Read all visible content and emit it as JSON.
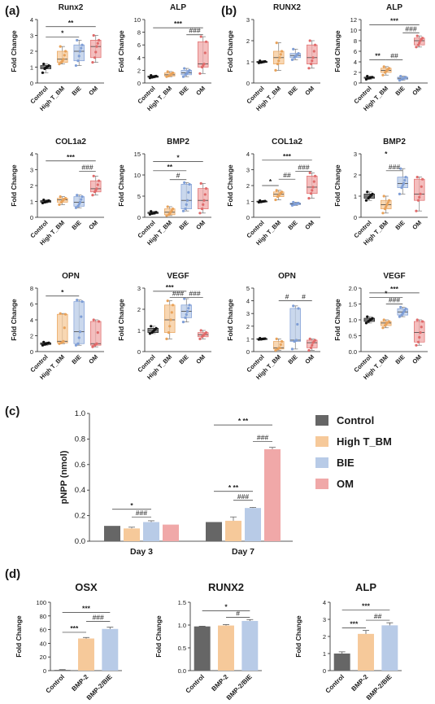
{
  "panel_labels": {
    "a": "(a)",
    "b": "(b)",
    "c": "(c)",
    "d": "(d)"
  },
  "common": {
    "ylabel": "Fold Change"
  },
  "colors": {
    "control": "#666666",
    "hightbm": "#f6c99a",
    "bie": "#b8cbe7",
    "om": "#f0a8a8",
    "dot_control": "#111111",
    "dot_hightbm": "#e8a25a",
    "dot_bie": "#7f9ed6",
    "dot_om": "#e06b6b"
  },
  "chart_data": [
    {
      "id": "a-runx2",
      "type": "box",
      "title": "Runx2",
      "ylabel": "Fold Change",
      "categories": [
        "Control",
        "High T_BM",
        "BIE",
        "OM"
      ],
      "ylim": [
        0,
        4
      ],
      "yticks": [
        "0",
        "1",
        "2",
        "3",
        "4"
      ],
      "boxes": [
        {
          "min": 0.65,
          "q1": 0.9,
          "median": 1.0,
          "q3": 1.1,
          "max": 1.2
        },
        {
          "min": 1.2,
          "q1": 1.3,
          "median": 1.5,
          "q3": 2.0,
          "max": 2.3
        },
        {
          "min": 1.1,
          "q1": 1.4,
          "median": 2.0,
          "q3": 2.4,
          "max": 2.7
        },
        {
          "min": 1.3,
          "q1": 1.6,
          "median": 2.3,
          "q3": 2.7,
          "max": 3.0
        }
      ],
      "sig": [
        {
          "from": 0,
          "to": 3,
          "text": "**",
          "level": 3.55
        },
        {
          "from": 0,
          "to": 2,
          "text": "*",
          "level": 2.9
        }
      ]
    },
    {
      "id": "a-alp",
      "type": "box",
      "title": "ALP",
      "ylabel": "Fold Change",
      "categories": [
        "Control",
        "High T_BM",
        "BIE",
        "OM"
      ],
      "ylim": [
        0,
        10
      ],
      "yticks": [
        "0",
        "2",
        "4",
        "6",
        "8",
        "10"
      ],
      "boxes": [
        {
          "min": 0.8,
          "q1": 0.9,
          "median": 1.0,
          "q3": 1.1,
          "max": 1.2
        },
        {
          "min": 1.0,
          "q1": 1.1,
          "median": 1.3,
          "q3": 1.6,
          "max": 1.8
        },
        {
          "min": 1.0,
          "q1": 1.3,
          "median": 1.6,
          "q3": 2.0,
          "max": 2.3
        },
        {
          "min": 1.5,
          "q1": 2.5,
          "median": 3.0,
          "q3": 6.5,
          "max": 7.3
        }
      ],
      "sig": [
        {
          "from": 0,
          "to": 3,
          "text": "***",
          "level": 8.7
        },
        {
          "from": 2,
          "to": 3,
          "text": "###",
          "level": 7.6
        }
      ]
    },
    {
      "id": "b-runx2",
      "type": "box",
      "title": "RUNX2",
      "ylabel": "Fold Change",
      "categories": [
        "Control",
        "High T_BM",
        "BIE",
        "OM"
      ],
      "ylim": [
        0,
        3
      ],
      "yticks": [
        "0",
        "1",
        "2",
        "3"
      ],
      "boxes": [
        {
          "min": 0.95,
          "q1": 0.97,
          "median": 1.0,
          "q3": 1.02,
          "max": 1.05
        },
        {
          "min": 0.6,
          "q1": 0.9,
          "median": 1.2,
          "q3": 1.5,
          "max": 1.9
        },
        {
          "min": 1.1,
          "q1": 1.2,
          "median": 1.3,
          "q3": 1.4,
          "max": 1.6
        },
        {
          "min": 0.7,
          "q1": 0.9,
          "median": 1.2,
          "q3": 1.8,
          "max": 2.0
        }
      ],
      "sig": []
    },
    {
      "id": "b-alp",
      "type": "box",
      "title": "ALP",
      "ylabel": "Fold Change",
      "categories": [
        "Control",
        "High T_BM",
        "BIE",
        "OM"
      ],
      "ylim": [
        0,
        12
      ],
      "yticks": [
        "0",
        "2",
        "4",
        "6",
        "8",
        "10",
        "12"
      ],
      "boxes": [
        {
          "min": 0.7,
          "q1": 0.9,
          "median": 1.0,
          "q3": 1.1,
          "max": 1.3
        },
        {
          "min": 1.5,
          "q1": 2.0,
          "median": 2.4,
          "q3": 2.8,
          "max": 3.1
        },
        {
          "min": 0.5,
          "q1": 0.7,
          "median": 0.9,
          "q3": 1.1,
          "max": 1.3
        },
        {
          "min": 6.8,
          "q1": 7.2,
          "median": 8.0,
          "q3": 8.5,
          "max": 8.9
        }
      ],
      "sig": [
        {
          "from": 0,
          "to": 3,
          "text": "***",
          "level": 11.0
        },
        {
          "from": 0,
          "to": 1,
          "text": "**",
          "level": 4.4
        },
        {
          "from": 1,
          "to": 2,
          "text": "##",
          "level": 4.4
        },
        {
          "from": 2,
          "to": 3,
          "text": "###",
          "level": 9.5
        }
      ]
    },
    {
      "id": "a-col1a2",
      "type": "box",
      "title": "COL1a2",
      "ylabel": "Fold Change",
      "categories": [
        "Control",
        "High T_BM",
        "BIE",
        "OM"
      ],
      "ylim": [
        0,
        4
      ],
      "yticks": [
        "0",
        "1",
        "2",
        "3",
        "4"
      ],
      "boxes": [
        {
          "min": 0.9,
          "q1": 0.95,
          "median": 1.0,
          "q3": 1.05,
          "max": 1.1
        },
        {
          "min": 0.8,
          "q1": 0.95,
          "median": 1.1,
          "q3": 1.2,
          "max": 1.3
        },
        {
          "min": 0.6,
          "q1": 0.7,
          "median": 0.95,
          "q3": 1.3,
          "max": 1.4
        },
        {
          "min": 1.4,
          "q1": 1.6,
          "median": 1.8,
          "q3": 2.3,
          "max": 2.6
        }
      ],
      "sig": [
        {
          "from": 0,
          "to": 3,
          "text": "***",
          "level": 3.55
        },
        {
          "from": 2,
          "to": 3,
          "text": "###",
          "level": 2.9
        }
      ]
    },
    {
      "id": "a-bmp2",
      "type": "box",
      "title": "BMP2",
      "ylabel": "Fold Change",
      "categories": [
        "Control",
        "High T_BM",
        "BIE",
        "OM"
      ],
      "ylim": [
        0,
        15
      ],
      "yticks": [
        "0",
        "5",
        "10",
        "15"
      ],
      "boxes": [
        {
          "min": 0.7,
          "q1": 0.9,
          "median": 1.0,
          "q3": 1.2,
          "max": 1.4
        },
        {
          "min": 0.4,
          "q1": 0.6,
          "median": 1.2,
          "q3": 2.0,
          "max": 2.5
        },
        {
          "min": 1.5,
          "q1": 2.0,
          "median": 4.0,
          "q3": 7.8,
          "max": 8.2
        },
        {
          "min": 1.0,
          "q1": 2.0,
          "median": 4.0,
          "q3": 6.8,
          "max": 8.0
        }
      ],
      "sig": [
        {
          "from": 0,
          "to": 3,
          "text": "*",
          "level": 13.2
        },
        {
          "from": 0,
          "to": 2,
          "text": "**",
          "level": 11.0
        },
        {
          "from": 1,
          "to": 2,
          "text": "#",
          "level": 8.9
        }
      ]
    },
    {
      "id": "b-col1a2",
      "type": "box",
      "title": "COL1a2",
      "ylabel": "Fold Change",
      "categories": [
        "Control",
        "High T_BM",
        "BIE",
        "OM"
      ],
      "ylim": [
        0,
        4
      ],
      "yticks": [
        "0",
        "1",
        "2",
        "3",
        "4"
      ],
      "boxes": [
        {
          "min": 0.95,
          "q1": 0.97,
          "median": 1.0,
          "q3": 1.02,
          "max": 1.05
        },
        {
          "min": 1.1,
          "q1": 1.3,
          "median": 1.45,
          "q3": 1.6,
          "max": 1.7
        },
        {
          "min": 0.75,
          "q1": 0.8,
          "median": 0.85,
          "q3": 0.9,
          "max": 0.95
        },
        {
          "min": 1.2,
          "q1": 1.5,
          "median": 1.9,
          "q3": 2.6,
          "max": 2.8
        }
      ],
      "sig": [
        {
          "from": 0,
          "to": 3,
          "text": "***",
          "level": 3.6
        },
        {
          "from": 0,
          "to": 1,
          "text": "*",
          "level": 2.0
        },
        {
          "from": 1,
          "to": 2,
          "text": "##",
          "level": 2.4
        },
        {
          "from": 2,
          "to": 3,
          "text": "###",
          "level": 2.9
        }
      ]
    },
    {
      "id": "b-bmp2",
      "type": "box",
      "title": "BMP2",
      "ylabel": "Fold Change",
      "categories": [
        "Control",
        "High T_BM",
        "BIE",
        "OM"
      ],
      "ylim": [
        0,
        3
      ],
      "yticks": [
        "0",
        "1",
        "2",
        "3"
      ],
      "boxes": [
        {
          "min": 0.8,
          "q1": 0.9,
          "median": 1.0,
          "q3": 1.1,
          "max": 1.2
        },
        {
          "min": 0.2,
          "q1": 0.4,
          "median": 0.6,
          "q3": 0.8,
          "max": 1.0
        },
        {
          "min": 1.1,
          "q1": 1.4,
          "median": 1.6,
          "q3": 1.9,
          "max": 2.3
        },
        {
          "min": 0.3,
          "q1": 0.8,
          "median": 1.1,
          "q3": 1.8,
          "max": 1.9
        }
      ],
      "sig": [
        {
          "from": 1,
          "to": 1,
          "text": "*",
          "level": 2.8
        },
        {
          "from": 1,
          "to": 2,
          "text": "###",
          "level": 2.2
        }
      ]
    },
    {
      "id": "a-opn",
      "type": "box",
      "title": "OPN",
      "ylabel": "Fold Change",
      "categories": [
        "Control",
        "High T_BM",
        "BIE",
        "OM"
      ],
      "ylim": [
        0,
        8
      ],
      "yticks": [
        "0",
        "2",
        "4",
        "6",
        "8"
      ],
      "boxes": [
        {
          "min": 0.8,
          "q1": 0.9,
          "median": 1.0,
          "q3": 1.1,
          "max": 1.2
        },
        {
          "min": 1.0,
          "q1": 1.1,
          "median": 1.3,
          "q3": 4.7,
          "max": 4.8
        },
        {
          "min": 0.8,
          "q1": 1.0,
          "median": 2.5,
          "q3": 6.3,
          "max": 6.5
        },
        {
          "min": 0.6,
          "q1": 0.8,
          "median": 1.0,
          "q3": 3.8,
          "max": 4.0
        }
      ],
      "sig": [
        {
          "from": 0,
          "to": 2,
          "text": "*",
          "level": 7.0
        }
      ]
    },
    {
      "id": "a-vegf",
      "type": "box",
      "title": "VEGF",
      "ylabel": "Fold Change",
      "categories": [
        "Control",
        "High T_BM",
        "BIE",
        "OM"
      ],
      "ylim": [
        0,
        3
      ],
      "yticks": [
        "0",
        "1",
        "2",
        "3"
      ],
      "boxes": [
        {
          "min": 0.85,
          "q1": 0.9,
          "median": 1.0,
          "q3": 1.1,
          "max": 1.2
        },
        {
          "min": 0.6,
          "q1": 0.9,
          "median": 1.5,
          "q3": 2.2,
          "max": 2.4
        },
        {
          "min": 1.4,
          "q1": 1.6,
          "median": 1.9,
          "q3": 2.2,
          "max": 2.5
        },
        {
          "min": 0.6,
          "q1": 0.7,
          "median": 0.8,
          "q3": 0.9,
          "max": 1.0
        }
      ],
      "sig": [
        {
          "from": 0,
          "to": 2,
          "text": "***",
          "level": 2.85
        },
        {
          "from": 1,
          "to": 2,
          "text": "###",
          "level": 2.55
        },
        {
          "from": 2,
          "to": 3,
          "text": "###",
          "level": 2.55
        }
      ]
    },
    {
      "id": "b-opn",
      "type": "box",
      "title": "OPN",
      "ylabel": "Fold Change",
      "categories": [
        "Control",
        "High T_BM",
        "BIE",
        "OM"
      ],
      "ylim": [
        0,
        5
      ],
      "yticks": [
        "0",
        "1",
        "2",
        "3",
        "4",
        "5"
      ],
      "boxes": [
        {
          "min": 0.95,
          "q1": 0.97,
          "median": 1.0,
          "q3": 1.02,
          "max": 1.05
        },
        {
          "min": 0.1,
          "q1": 0.2,
          "median": 0.3,
          "q3": 0.8,
          "max": 1.0
        },
        {
          "min": 0.2,
          "q1": 0.8,
          "median": 0.9,
          "q3": 3.4,
          "max": 3.6
        },
        {
          "min": 0.1,
          "q1": 0.3,
          "median": 0.7,
          "q3": 0.9,
          "max": 1.0
        }
      ],
      "sig": [
        {
          "from": 1,
          "to": 2,
          "text": "#",
          "level": 4.0
        },
        {
          "from": 2,
          "to": 3,
          "text": "#",
          "level": 4.0
        }
      ]
    },
    {
      "id": "b-vegf",
      "type": "box",
      "title": "VEGF",
      "ylabel": "Fold Change",
      "categories": [
        "Control",
        "High T_BM",
        "BIE",
        "OM"
      ],
      "ylim": [
        0,
        2
      ],
      "yticks": [
        "0.0",
        "0.5",
        "1.0",
        "1.5",
        "2.0"
      ],
      "boxes": [
        {
          "min": 0.9,
          "q1": 0.95,
          "median": 1.0,
          "q3": 1.05,
          "max": 1.1
        },
        {
          "min": 0.75,
          "q1": 0.82,
          "median": 0.9,
          "q3": 0.95,
          "max": 1.0
        },
        {
          "min": 1.1,
          "q1": 1.15,
          "median": 1.25,
          "q3": 1.35,
          "max": 1.4
        },
        {
          "min": 0.2,
          "q1": 0.3,
          "median": 0.6,
          "q3": 0.95,
          "max": 1.0
        }
      ],
      "sig": [
        {
          "from": 0,
          "to": 3,
          "text": "***",
          "level": 1.85
        },
        {
          "from": 0,
          "to": 2,
          "text": "*",
          "level": 1.7
        },
        {
          "from": 1,
          "to": 2,
          "text": "###",
          "level": 1.5
        }
      ]
    },
    {
      "id": "c-pnpp",
      "type": "bar",
      "title": "",
      "ylabel": "pNPP (nmol)",
      "categories": [
        "Day 3",
        "Day 7"
      ],
      "ylim": [
        0,
        1.0
      ],
      "yticks": [
        "0.0",
        "0.2",
        "0.4",
        "0.6",
        "0.8",
        "1.0"
      ],
      "series": [
        {
          "name": "Control",
          "values": [
            0.12,
            0.15
          ],
          "errors": [
            0.0,
            0.0
          ]
        },
        {
          "name": "High T_BM",
          "values": [
            0.1,
            0.16
          ],
          "errors": [
            0.01,
            0.03
          ]
        },
        {
          "name": "BIE",
          "values": [
            0.15,
            0.26
          ],
          "errors": [
            0.01,
            0.005
          ]
        },
        {
          "name": "OM",
          "values": [
            0.13,
            0.72
          ],
          "errors": [
            0.0,
            0.015
          ]
        }
      ],
      "sig": [
        {
          "group": 0,
          "from": 0,
          "to": 2,
          "text": "*",
          "level": 0.25
        },
        {
          "group": 0,
          "from": 1,
          "to": 2,
          "text": "###",
          "level": 0.19
        },
        {
          "group": 1,
          "from": 0,
          "to": 2,
          "text": "* **",
          "level": 0.39
        },
        {
          "group": 1,
          "from": 1,
          "to": 2,
          "text": "###",
          "level": 0.32
        },
        {
          "group": 1,
          "from": 0,
          "to": 3,
          "text": "* **",
          "level": 0.91
        },
        {
          "group": 1,
          "from": 2,
          "to": 3,
          "text": "###",
          "level": 0.78
        }
      ]
    },
    {
      "id": "d-osx",
      "type": "bar",
      "title": "OSX",
      "ylabel": "Fold Change",
      "categories": [
        "Control",
        "BMP-2",
        "BMP-2/BIE"
      ],
      "ylim": [
        0,
        100
      ],
      "yticks": [
        "0",
        "20",
        "40",
        "60",
        "80",
        "100"
      ],
      "values": [
        1,
        47,
        61
      ],
      "errors": [
        0.5,
        1.5,
        2.5
      ],
      "sig": [
        {
          "from": 0,
          "to": 2,
          "text": "***",
          "level": 85
        },
        {
          "from": 0,
          "to": 1,
          "text": "***",
          "level": 56
        },
        {
          "from": 1,
          "to": 2,
          "text": "###",
          "level": 72
        }
      ]
    },
    {
      "id": "d-runx2",
      "type": "bar",
      "title": "RUNX2",
      "ylabel": "Fold Change",
      "categories": [
        "Control",
        "BMP-2",
        "BMP-2/BIE"
      ],
      "ylim": [
        0,
        1.5
      ],
      "yticks": [
        "0.0",
        "0.5",
        "1.0",
        "1.5"
      ],
      "values": [
        0.97,
        0.99,
        1.09
      ],
      "errors": [
        0.005,
        0.02,
        0.03
      ],
      "sig": [
        {
          "from": 0,
          "to": 2,
          "text": "*",
          "level": 1.31
        },
        {
          "from": 1,
          "to": 2,
          "text": "#",
          "level": 1.17
        }
      ]
    },
    {
      "id": "d-alp",
      "type": "bar",
      "title": "ALP",
      "ylabel": "Fold Change",
      "categories": [
        "Control",
        "BMP-2",
        "BMP-2/BIE"
      ],
      "ylim": [
        0,
        4
      ],
      "yticks": [
        "0",
        "1",
        "2",
        "3",
        "4"
      ],
      "values": [
        1.0,
        2.15,
        2.65
      ],
      "errors": [
        0.1,
        0.2,
        0.15
      ],
      "sig": [
        {
          "from": 0,
          "to": 2,
          "text": "***",
          "level": 3.55
        },
        {
          "from": 0,
          "to": 1,
          "text": "***",
          "level": 2.5
        },
        {
          "from": 1,
          "to": 2,
          "text": "##",
          "level": 2.95
        }
      ]
    }
  ],
  "legend": {
    "items": [
      "Control",
      "High T_BM",
      "BIE",
      "OM"
    ]
  }
}
